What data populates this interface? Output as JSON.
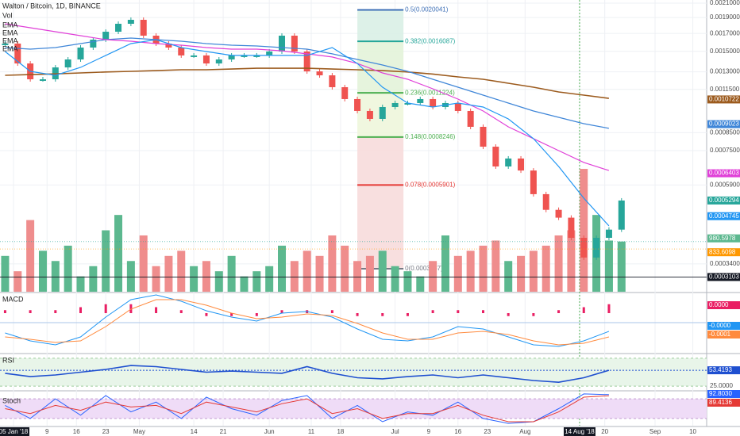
{
  "chart_data": {
    "type": "candlestick",
    "title": "Walton / Bitcoin, 1D, BINANCE",
    "legend": [
      "Vol",
      "EMA",
      "EMA",
      "EMA",
      "EMA"
    ],
    "log_scale": true,
    "grid": true,
    "xlim": [
      -3.22,
      165.3
    ],
    "xticks": [
      {
        "value": 0,
        "label": "05 Jan '18"
      },
      {
        "value": 8,
        "label": "9"
      },
      {
        "value": 15,
        "label": "16"
      },
      {
        "value": 22,
        "label": "23"
      },
      {
        "value": 30,
        "label": "May"
      },
      {
        "value": 43,
        "label": "14"
      },
      {
        "value": 50,
        "label": "21"
      },
      {
        "value": 61,
        "label": "Jun"
      },
      {
        "value": 71,
        "label": "11"
      },
      {
        "value": 78,
        "label": "18"
      },
      {
        "value": 91,
        "label": "Jul"
      },
      {
        "value": 99,
        "label": "9"
      },
      {
        "value": 106,
        "label": "16"
      },
      {
        "value": 113,
        "label": "23"
      },
      {
        "value": 122,
        "label": "Aug"
      },
      {
        "value": 135,
        "label": "14 Aug '18"
      },
      {
        "value": 141,
        "label": "20"
      },
      {
        "value": 153,
        "label": "Sep"
      },
      {
        "value": 162,
        "label": "10"
      }
    ],
    "crosshair": 135,
    "ylim": [
      0.00028,
      0.002147
    ],
    "yticks": [
      {
        "value": 0.0021,
        "label": "0.0021000"
      },
      {
        "value": 0.0019,
        "label": "0.0019000"
      },
      {
        "value": 0.0017,
        "label": "0.0017000"
      },
      {
        "value": 0.0015,
        "label": "0.0015000"
      },
      {
        "value": 0.0013,
        "label": "0.0013000"
      },
      {
        "value": 0.00115,
        "label": "0.0011500"
      },
      {
        "value": 0.00085,
        "label": "0.0008500"
      },
      {
        "value": 0.00075,
        "label": "0.0007500"
      },
      {
        "value": 0.00059,
        "label": "0.0005900"
      },
      {
        "value": 0.00034,
        "label": "0.0003400"
      }
    ],
    "x": [
      -2,
      1,
      4,
      7,
      10,
      13,
      16,
      19,
      22,
      25,
      28,
      31,
      34,
      37,
      40,
      43,
      46,
      49,
      52,
      55,
      58,
      61,
      64,
      67,
      70,
      73,
      76,
      79,
      82,
      85,
      88,
      91,
      94,
      97,
      100,
      103,
      106,
      109,
      112,
      115,
      118,
      121,
      124,
      127,
      130,
      133,
      136,
      139,
      142,
      145
    ],
    "close": [
      0.0015836,
      0.0013784,
      0.0012342,
      0.0012342,
      0.0013409,
      0.0014175,
      0.0015404,
      0.0016279,
      0.0017203,
      0.0018186,
      0.0018697,
      0.0016737,
      0.0015836,
      0.0015404,
      0.0014578,
      0.0014578,
      0.0013784,
      0.0014175,
      0.0014578,
      0.0014578,
      0.0014578,
      0.0014985,
      0.0016737,
      0.0014985,
      0.0013043,
      0.0012688,
      0.001168,
      0.001075,
      0.0009893,
      0.000936,
      0.001017,
      0.0010456,
      0.0010456,
      0.001075,
      0.001017,
      0.0010456,
      0.0009893,
      0.0008856,
      0.0007709,
      0.0006714,
      0.0007098,
      0.0006527,
      0.0005534,
      0.000496,
      0.0004696,
      0.0004079,
      0.0003555,
      0.0004079,
      0.000432,
      0.0005294
    ],
    "up_color": "#26a69a",
    "down_color": "#ef5350",
    "volume": [
      700,
      400,
      1400,
      800,
      600,
      900,
      300,
      500,
      1200,
      1500,
      600,
      1100,
      500,
      700,
      800,
      500,
      600,
      400,
      700,
      300,
      400,
      500,
      900,
      600,
      800,
      700,
      1100,
      900,
      600,
      700,
      800,
      500,
      400,
      300,
      600,
      1100,
      700,
      800,
      900,
      1000,
      600,
      700,
      800,
      900,
      1100,
      1200,
      2400,
      1500,
      1000,
      980.5978
    ],
    "vlim": [
      0,
      5700
    ],
    "volume_ma_last": 833.6098,
    "price_line": 0.0003103,
    "indicator_x": [
      -2,
      4,
      10,
      16,
      22,
      28,
      34,
      40,
      46,
      52,
      58,
      64,
      70,
      76,
      82,
      88,
      94,
      100,
      106,
      112,
      118,
      124,
      130,
      136,
      142
    ],
    "ema": [
      {
        "color": "#9c5b1e",
        "last_value": 0.0010722,
        "values": [
          0.0012688,
          0.001275,
          0.001282,
          0.0012904,
          0.001299,
          0.0013043,
          0.001311,
          0.0013192,
          0.0013192,
          0.001326,
          0.001333,
          0.001333,
          0.001333,
          0.001326,
          0.0013192,
          0.001311,
          0.001299,
          0.00128,
          0.001255,
          0.0012342,
          0.0012008,
          0.001168,
          0.00113,
          0.0011052,
          0.00108
        ]
      },
      {
        "color": "#3f86d8",
        "last_value": 0.0009023,
        "values": [
          0.0015404,
          0.001523,
          0.0015404,
          0.0015836,
          0.0016279,
          0.001646,
          0.0016279,
          0.00161,
          0.0015836,
          0.001566,
          0.001557,
          0.0015404,
          0.001523,
          0.001474,
          0.0014175,
          0.001364,
          0.0013043,
          0.0012342,
          0.001168,
          0.0011052,
          0.0010456,
          0.0009893,
          0.0009465,
          0.0009055,
          0.000876
        ]
      },
      {
        "color": "#e040d8",
        "last_value": 0.0006403,
        "values": [
          0.0018186,
          0.0017689,
          0.0017203,
          0.0016737,
          0.0016279,
          0.00161,
          0.0015836,
          0.001566,
          0.0015404,
          0.001523,
          0.001523,
          0.001506,
          0.001474,
          0.0014419,
          0.0013784,
          0.0012904,
          0.0012342,
          0.001155,
          0.001075,
          0.0009893,
          0.0008856,
          0.0008152,
          0.0007501,
          0.0006905,
          0.0006527
        ]
      },
      {
        "color": "#2196f3",
        "last_value": 0.0004745,
        "values": [
          0.0014985,
          0.0013043,
          0.0012688,
          0.0013409,
          0.0014578,
          0.0015836,
          0.0016279,
          0.0015404,
          0.0014985,
          0.0014578,
          0.0014578,
          0.0014578,
          0.0014578,
          0.0015404,
          0.0013784,
          0.001168,
          0.0010456,
          0.001017,
          0.0010456,
          0.001017,
          0.000936,
          0.0008152,
          0.0006714,
          0.0005382,
          0.0004435
        ]
      }
    ],
    "fib": {
      "x": [
        82,
        93
      ],
      "levels": [
        {
          "label": "0.5(0.0020041)",
          "value": 0.0020041,
          "color": "#3d6fb6",
          "fill": "#d7e8f6"
        },
        {
          "label": "0.382(0.0016087)",
          "value": 0.0016087,
          "color": "#26a69a",
          "fill": "#d9f0e6"
        },
        {
          "label": "0.236(0.0011224)",
          "value": 0.0011224,
          "color": "#4caf50",
          "fill": "#e3f3d9"
        },
        {
          "label": "0.148(0.0008246)",
          "value": 0.0008246,
          "color": "#4caf50",
          "fill": "#eef6dc"
        },
        {
          "label": "0.078(0.0005901)",
          "value": 0.0005901,
          "color": "#e53935",
          "fill": "#f7dcdc"
        },
        {
          "label": "0(0.0003287)",
          "value": 0.0003287,
          "color": "#787b86",
          "fill": "#f7dcdc"
        }
      ]
    },
    "macd": {
      "title": "MACD",
      "ylim": [
        -0.00012,
        0.00012
      ],
      "hlim": [
        -4e-05,
        4e-05
      ],
      "series": [
        {
          "color": "#2196f3",
          "last_label": "-0.0000",
          "values": [
            -4.46e-05,
            -7.89e-05,
            -9.6e-05,
            -6.17e-05,
            2.4e-05,
            9.95e-05,
            0.0001201,
            9.26e-05,
            5.15e-05,
            2.4e-05,
            6.9e-06,
            4.12e-05,
            4.8e-05,
            2.4e-05,
            -2.74e-05,
            -7.2e-05,
            -7.89e-05,
            -6.17e-05,
            -1.72e-05,
            -2.74e-05,
            -6.17e-05,
            -9.6e-05,
            -0.0001029,
            -7.89e-05,
            -3.77e-05
          ]
        },
        {
          "color": "#ff8a3d",
          "last_label": "-0.0001",
          "values": [
            -6.17e-05,
            -7.2e-05,
            -8.57e-05,
            -7.89e-05,
            -1.72e-05,
            5.83e-05,
            9.95e-05,
            9.95e-05,
            7.55e-05,
            4.12e-05,
            1.72e-05,
            2.4e-05,
            3.77e-05,
            3.09e-05,
            -3.4e-06,
            -4.46e-05,
            -7.2e-05,
            -7.2e-05,
            -4.46e-05,
            -3.77e-05,
            -5.15e-05,
            -7.89e-05,
            -9.6e-05,
            -8.92e-05,
            -6.17e-05
          ]
        }
      ],
      "histogram": {
        "color": "#e91e63",
        "last_label": "0.0000",
        "values": [
          1e-05,
          1e-05,
          1e-05,
          2e-05,
          3e-05,
          3e-05,
          2e-05,
          1e-05,
          -1e-05,
          -1e-05,
          -1e-05,
          1e-05,
          1e-05,
          1e-05,
          -1e-05,
          -1e-05,
          -1e-05,
          1e-05,
          1e-05,
          1e-05,
          -1e-05,
          -1e-05,
          1e-05,
          2e-05,
          3e-05
        ]
      }
    },
    "rsi": {
      "title": "RSI",
      "ylim": [
        18,
        82
      ],
      "band": [
        25,
        75
      ],
      "yticks": [
        {
          "value": 25,
          "label": "25.0000"
        }
      ],
      "color": "#1e4fd0",
      "values": [
        48,
        42,
        45,
        50,
        55,
        62,
        60,
        55,
        50,
        52,
        50,
        48,
        60,
        48,
        40,
        38,
        42,
        45,
        40,
        45,
        40,
        35,
        32,
        40,
        53.4193
      ]
    },
    "stoch": {
      "title": "Stoch",
      "ylim": [
        -2,
        102
      ],
      "band": [
        20,
        80
      ],
      "series": [
        {
          "color": "#2962ff",
          "last_label": "92.8030",
          "values": [
            60,
            20,
            80,
            30,
            90,
            40,
            70,
            20,
            85,
            50,
            30,
            75,
            90,
            20,
            60,
            10,
            40,
            30,
            70,
            20,
            5,
            10,
            50,
            95,
            92.803
          ]
        },
        {
          "color": "#e53935",
          "values": [
            50,
            35,
            60,
            45,
            70,
            55,
            60,
            35,
            70,
            55,
            40,
            65,
            80,
            35,
            50,
            20,
            35,
            35,
            60,
            30,
            10,
            10,
            40,
            85,
            89.4136
          ]
        }
      ]
    }
  }
}
